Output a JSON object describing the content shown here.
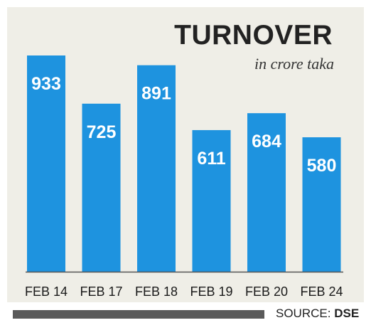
{
  "chart_data": {
    "type": "bar",
    "title": "TURNOVER",
    "subtitle": "in crore taka",
    "categories": [
      "FEB 14",
      "FEB 17",
      "FEB 18",
      "FEB 19",
      "FEB 20",
      "FEB 24"
    ],
    "values": [
      933,
      725,
      891,
      611,
      684,
      580
    ],
    "xlabel": "",
    "ylabel": "",
    "ylim": [
      0,
      1000
    ],
    "grid": false,
    "bar_color": "#1e93df",
    "label_color": "#ffffff"
  },
  "footer": {
    "source_label": "SOURCE:",
    "source_name": "DSE"
  }
}
